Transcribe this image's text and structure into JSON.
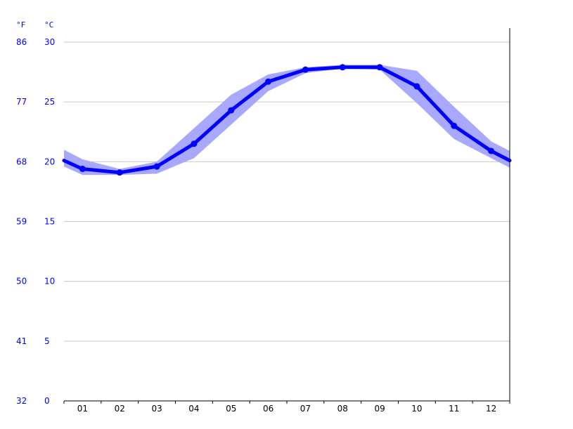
{
  "chart_data": {
    "type": "line",
    "units": {
      "left": "°F",
      "right": "°C"
    },
    "categories": [
      "01",
      "02",
      "03",
      "04",
      "05",
      "06",
      "07",
      "08",
      "09",
      "10",
      "11",
      "12"
    ],
    "ylim_c": [
      0,
      30
    ],
    "yticks_c": [
      "30",
      "25",
      "20",
      "15",
      "10",
      "5",
      "0"
    ],
    "yticks_f": [
      "86",
      "77",
      "68",
      "59",
      "50",
      "41",
      "32"
    ],
    "series": [
      {
        "values": [
          19.4,
          19.1,
          19.6,
          21.5,
          24.3,
          26.7,
          27.7,
          27.9,
          27.9,
          26.3,
          23.0,
          20.9
        ]
      }
    ],
    "band_upper": [
      20.2,
      19.4,
      20.0,
      22.8,
      25.6,
      27.3,
      27.9,
      28.1,
      28.1,
      27.6,
      24.6,
      21.7
    ],
    "band_lower": [
      18.9,
      18.9,
      19.0,
      20.3,
      23.1,
      25.9,
      27.4,
      27.8,
      27.7,
      24.9,
      21.9,
      20.3
    ],
    "line_start": 20.1,
    "line_end": 20.1,
    "band_start_upper": 21.0,
    "band_start_lower": 19.6,
    "band_end_upper": 20.9,
    "band_end_lower": 19.5,
    "grid": true,
    "colors": {
      "line": "#0000ff",
      "band": "#a8a8ff",
      "grid": "#c8c8c8",
      "labels": "#0000ff"
    }
  }
}
